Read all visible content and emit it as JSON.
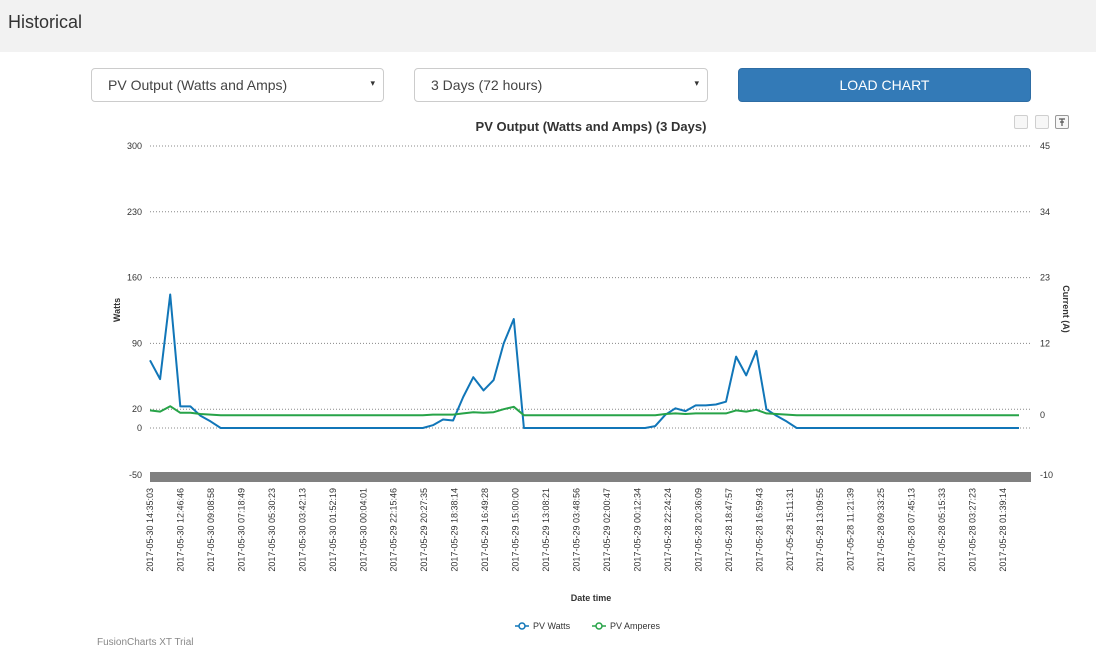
{
  "header": {
    "title": "Historical"
  },
  "controls": {
    "series_select": "PV Output (Watts and Amps)",
    "range_select": "3 Days (72 hours)",
    "load_button": "LOAD CHART",
    "caret_icon": "▾"
  },
  "toolbar": {
    "icons": [
      "zoom-out-icon",
      "reset-icon",
      "pin-icon"
    ]
  },
  "credit": "FusionCharts XT Trial",
  "colors": {
    "watts": "#1176b8",
    "amperes": "#27a348",
    "canvas_bottom": "#808080"
  },
  "chart_data": {
    "type": "line",
    "title": "PV Output (Watts and Amps) (3 Days)",
    "xlabel": "Date time",
    "ylabel": "Watts",
    "y2label": "Current (A)",
    "ylim": [
      -50,
      300
    ],
    "y2lim": [
      -10,
      45
    ],
    "yticks": [
      -50,
      0,
      20,
      90,
      160,
      230,
      300
    ],
    "y2ticks": [
      -10,
      0,
      12,
      23,
      34,
      45
    ],
    "legend_position": "bottom-center",
    "x_tick_labels": [
      "2017-05-30 14:35:03",
      "2017-05-30 12:46:46",
      "2017-05-30 09:08:58",
      "2017-05-30 07:18:49",
      "2017-05-30 05:30:23",
      "2017-05-30 03:42:13",
      "2017-05-30 01:52:19",
      "2017-05-30 00:04:01",
      "2017-05-29 22:15:46",
      "2017-05-29 20:27:35",
      "2017-05-29 18:38:14",
      "2017-05-29 16:49:28",
      "2017-05-29 15:00:00",
      "2017-05-29 13:08:21",
      "2017-05-29 03:48:56",
      "2017-05-29 02:00:47",
      "2017-05-29 00:12:34",
      "2017-05-28 22:24:24",
      "2017-05-28 20:36:09",
      "2017-05-28 18:47:57",
      "2017-05-28 16:59:43",
      "2017-05-28 15:11:31",
      "2017-05-28 13:09:55",
      "2017-05-28 11:21:39",
      "2017-05-28 09:33:25",
      "2017-05-28 07:45:13",
      "2017-05-28 05:15:33",
      "2017-05-28 03:27:23",
      "2017-05-28 01:39:14"
    ],
    "series": [
      {
        "name": "PV Watts",
        "axis": "primary",
        "values": [
          72,
          52,
          142,
          23,
          23,
          13,
          7,
          0,
          0,
          0,
          0,
          0,
          0,
          0,
          0,
          0,
          0,
          0,
          0,
          0,
          0,
          0,
          0,
          0,
          0,
          0,
          0,
          0,
          3,
          9,
          8,
          33,
          54,
          40,
          51,
          90,
          116,
          0,
          0,
          0,
          0,
          0,
          0,
          0,
          0,
          0,
          0,
          0,
          0,
          0,
          2,
          14,
          21,
          18,
          24,
          24,
          25,
          28,
          76,
          56,
          82,
          20,
          13,
          7,
          0,
          0,
          0,
          0,
          0,
          0,
          0,
          0,
          0,
          0,
          0,
          0,
          0,
          0,
          0,
          0,
          0,
          0,
          0,
          0,
          0,
          0,
          0
        ]
      },
      {
        "name": "PV Amperes",
        "axis": "secondary",
        "values": [
          0.8,
          0.6,
          1.5,
          0.4,
          0.4,
          0.2,
          0.1,
          0,
          0,
          0,
          0,
          0,
          0,
          0,
          0,
          0,
          0,
          0,
          0,
          0,
          0,
          0,
          0,
          0,
          0,
          0,
          0,
          0,
          0.1,
          0.1,
          0.1,
          0.3,
          0.5,
          0.4,
          0.5,
          1.0,
          1.4,
          0,
          0,
          0,
          0,
          0,
          0,
          0,
          0,
          0,
          0,
          0,
          0,
          0,
          0,
          0.2,
          0.3,
          0.2,
          0.3,
          0.3,
          0.3,
          0.3,
          0.8,
          0.6,
          0.9,
          0.3,
          0.2,
          0.1,
          0,
          0,
          0,
          0,
          0,
          0,
          0,
          0,
          0,
          0,
          0,
          0,
          0,
          0,
          0,
          0,
          0,
          0,
          0,
          0,
          0,
          0,
          0
        ]
      }
    ]
  }
}
